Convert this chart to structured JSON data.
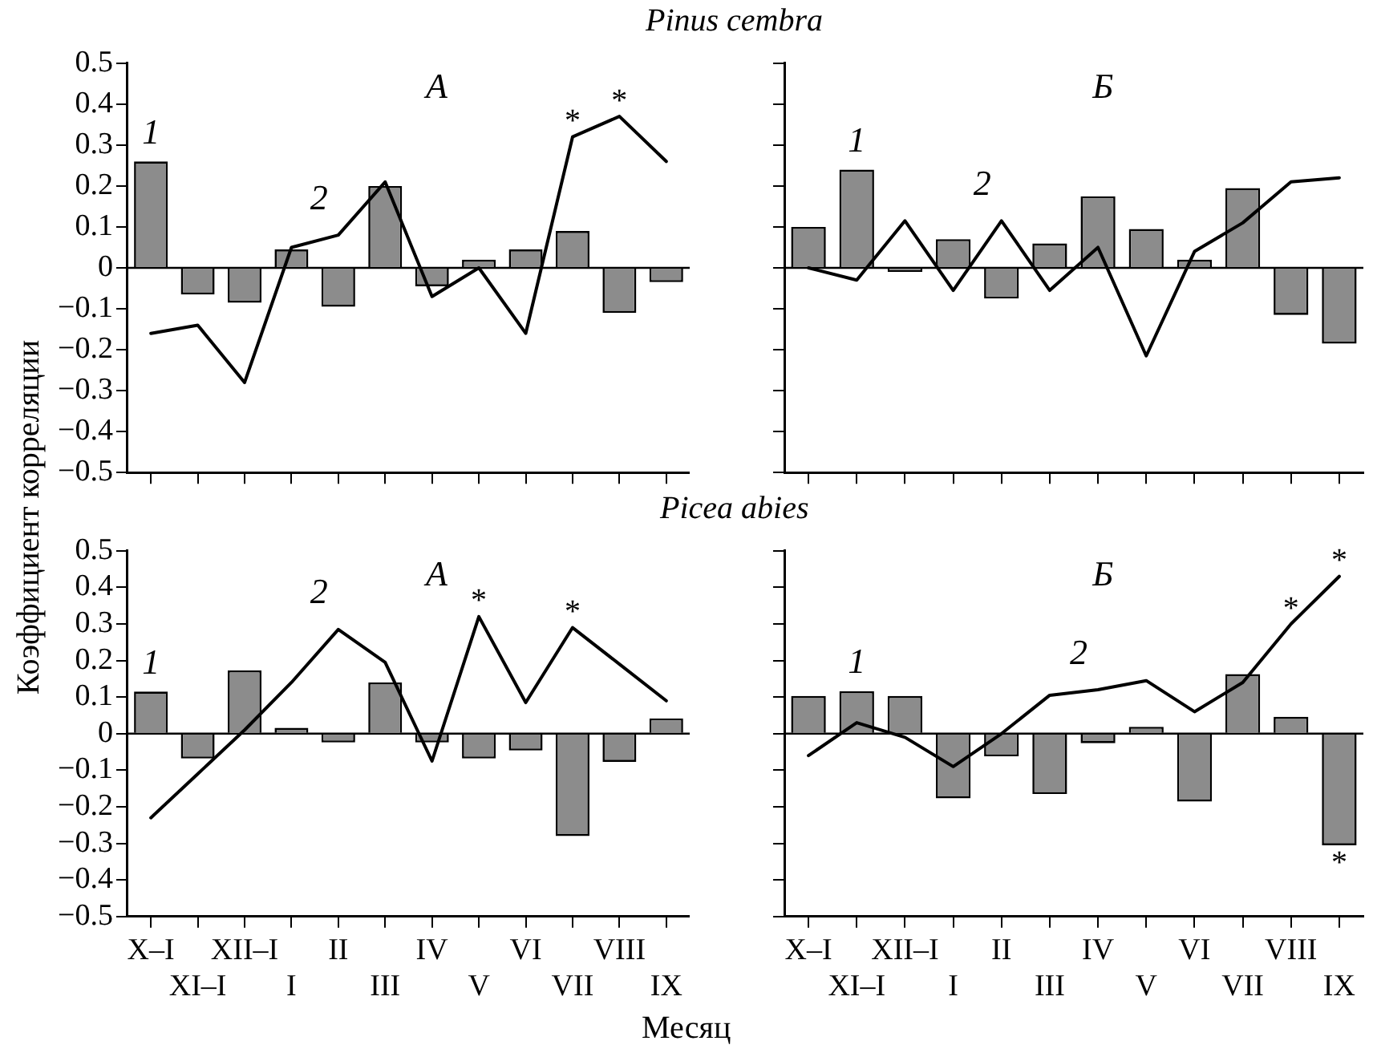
{
  "chart_data": [
    {
      "type": "bar",
      "title": "Pinus cembra",
      "subtitle": "А",
      "ylabel": "Коэффициент корреляции",
      "categories": [
        "X–I",
        "XI–I",
        "XII–I",
        "I",
        "II",
        "III",
        "IV",
        "V",
        "VI",
        "VII",
        "VIII",
        "IX"
      ],
      "series": [
        {
          "name": "1",
          "color": "#8c8c8c",
          "values": [
            0.26,
            -0.065,
            -0.085,
            0.045,
            -0.095,
            0.2,
            -0.045,
            0.02,
            0.045,
            0.09,
            -0.11,
            -0.035
          ]
        },
        {
          "name": "2",
          "type": "line",
          "color": "#000000",
          "values": [
            -0.16,
            -0.14,
            -0.28,
            0.05,
            0.08,
            0.21,
            -0.07,
            0.0,
            -0.16,
            0.32,
            0.37,
            0.26
          ]
        }
      ],
      "ylim": [
        -0.5,
        0.5
      ],
      "yticks": [
        {
          "value": -0.5,
          "label": "−0.5"
        },
        {
          "value": -0.4,
          "label": "−0.4"
        },
        {
          "value": -0.3,
          "label": "−0.3"
        },
        {
          "value": -0.2,
          "label": "−0.2"
        },
        {
          "value": -0.1,
          "label": "−0.1"
        },
        0,
        0.1,
        0.2,
        0.3,
        0.4,
        0.5
      ],
      "ref_lines": [
        {
          "axis": "y",
          "value": 0
        }
      ],
      "annotations": [
        {
          "text": "*",
          "x": "VII",
          "y": 0.32
        },
        {
          "text": "*",
          "x": "VIII",
          "y": 0.37
        }
      ],
      "tick_labels": "y",
      "grid": false,
      "legend": false,
      "marker": "none",
      "line_style": "solid"
    },
    {
      "type": "bar",
      "subtitle": "Б",
      "categories": [
        "X–I",
        "XI–I",
        "XII–I",
        "I",
        "II",
        "III",
        "IV",
        "V",
        "VI",
        "VII",
        "VIII",
        "IX"
      ],
      "series": [
        {
          "name": "1",
          "color": "#8c8c8c",
          "values": [
            0.1,
            0.24,
            -0.01,
            0.07,
            -0.075,
            0.06,
            0.175,
            0.095,
            0.02,
            0.195,
            -0.115,
            -0.185
          ]
        },
        {
          "name": "2",
          "type": "line",
          "color": "#000000",
          "values": [
            0.0,
            -0.03,
            0.115,
            -0.055,
            0.115,
            -0.055,
            0.05,
            -0.215,
            0.04,
            0.11,
            0.21,
            0.22
          ]
        }
      ],
      "ylim": [
        -0.5,
        0.5
      ],
      "yticks": [
        -0.5,
        -0.4,
        -0.3,
        -0.2,
        -0.1,
        0,
        0.1,
        0.2,
        0.3,
        0.4,
        0.5
      ],
      "ref_lines": [
        {
          "axis": "y",
          "value": 0
        }
      ],
      "tick_labels": false,
      "grid": false,
      "legend": false,
      "marker": "none",
      "line_style": "solid"
    },
    {
      "type": "bar",
      "title": "Picea abies",
      "subtitle": "А",
      "xlabel": "Месяц",
      "categories": [
        "X–I",
        "XI–I",
        "XII–I",
        "I",
        "II",
        "III",
        "IV",
        "V",
        "VI",
        "VII",
        "VIII",
        "IX"
      ],
      "series": [
        {
          "name": "1",
          "color": "#8c8c8c",
          "values": [
            0.115,
            -0.068,
            0.173,
            0.016,
            -0.024,
            0.14,
            -0.024,
            -0.068,
            -0.046,
            -0.28,
            -0.077,
            0.042
          ]
        },
        {
          "name": "2",
          "type": "line",
          "color": "#000000",
          "values": [
            -0.23,
            -0.11,
            0.01,
            0.14,
            0.285,
            0.195,
            -0.075,
            0.32,
            0.085,
            0.29,
            0.19,
            0.09
          ]
        }
      ],
      "ylim": [
        -0.5,
        0.5
      ],
      "yticks": [
        {
          "value": -0.5,
          "label": "−0.5"
        },
        {
          "value": -0.4,
          "label": "−0.4"
        },
        {
          "value": -0.3,
          "label": "−0.3"
        },
        {
          "value": -0.2,
          "label": "−0.2"
        },
        {
          "value": -0.1,
          "label": "−0.1"
        },
        0,
        0.1,
        0.2,
        0.3,
        0.4,
        0.5
      ],
      "ref_lines": [
        {
          "axis": "y",
          "value": 0
        }
      ],
      "annotations": [
        {
          "text": "*",
          "x": "V",
          "y": 0.32
        },
        {
          "text": "*",
          "x": "VII",
          "y": 0.29
        }
      ],
      "grid": false,
      "legend": false,
      "marker": "none",
      "line_style": "solid"
    },
    {
      "type": "bar",
      "subtitle": "Б",
      "categories": [
        "X–I",
        "XI–I",
        "XII–I",
        "I",
        "II",
        "III",
        "IV",
        "V",
        "VI",
        "VII",
        "VIII",
        "IX"
      ],
      "series": [
        {
          "name": "1",
          "color": "#8c8c8c",
          "values": [
            0.103,
            0.116,
            0.103,
            -0.177,
            -0.062,
            -0.165,
            -0.026,
            0.019,
            -0.186,
            0.163,
            0.046,
            -0.305
          ]
        },
        {
          "name": "2",
          "type": "line",
          "color": "#000000",
          "values": [
            -0.06,
            0.03,
            -0.01,
            -0.09,
            0.0,
            0.105,
            0.12,
            0.145,
            0.06,
            0.14,
            0.3,
            0.43
          ]
        }
      ],
      "ylim": [
        -0.5,
        0.5
      ],
      "yticks": [
        -0.5,
        -0.4,
        -0.3,
        -0.2,
        -0.1,
        0,
        0.1,
        0.2,
        0.3,
        0.4,
        0.5
      ],
      "ref_lines": [
        {
          "axis": "y",
          "value": 0
        }
      ],
      "annotations": [
        {
          "text": "*",
          "x": "VIII",
          "y": 0.3
        },
        {
          "text": "*",
          "x": "IX",
          "y": 0.43
        },
        {
          "text": "*",
          "x": "IX",
          "y": -0.305
        }
      ],
      "tick_labels": "x",
      "grid": false,
      "legend": false,
      "marker": "none",
      "line_style": "solid"
    }
  ]
}
